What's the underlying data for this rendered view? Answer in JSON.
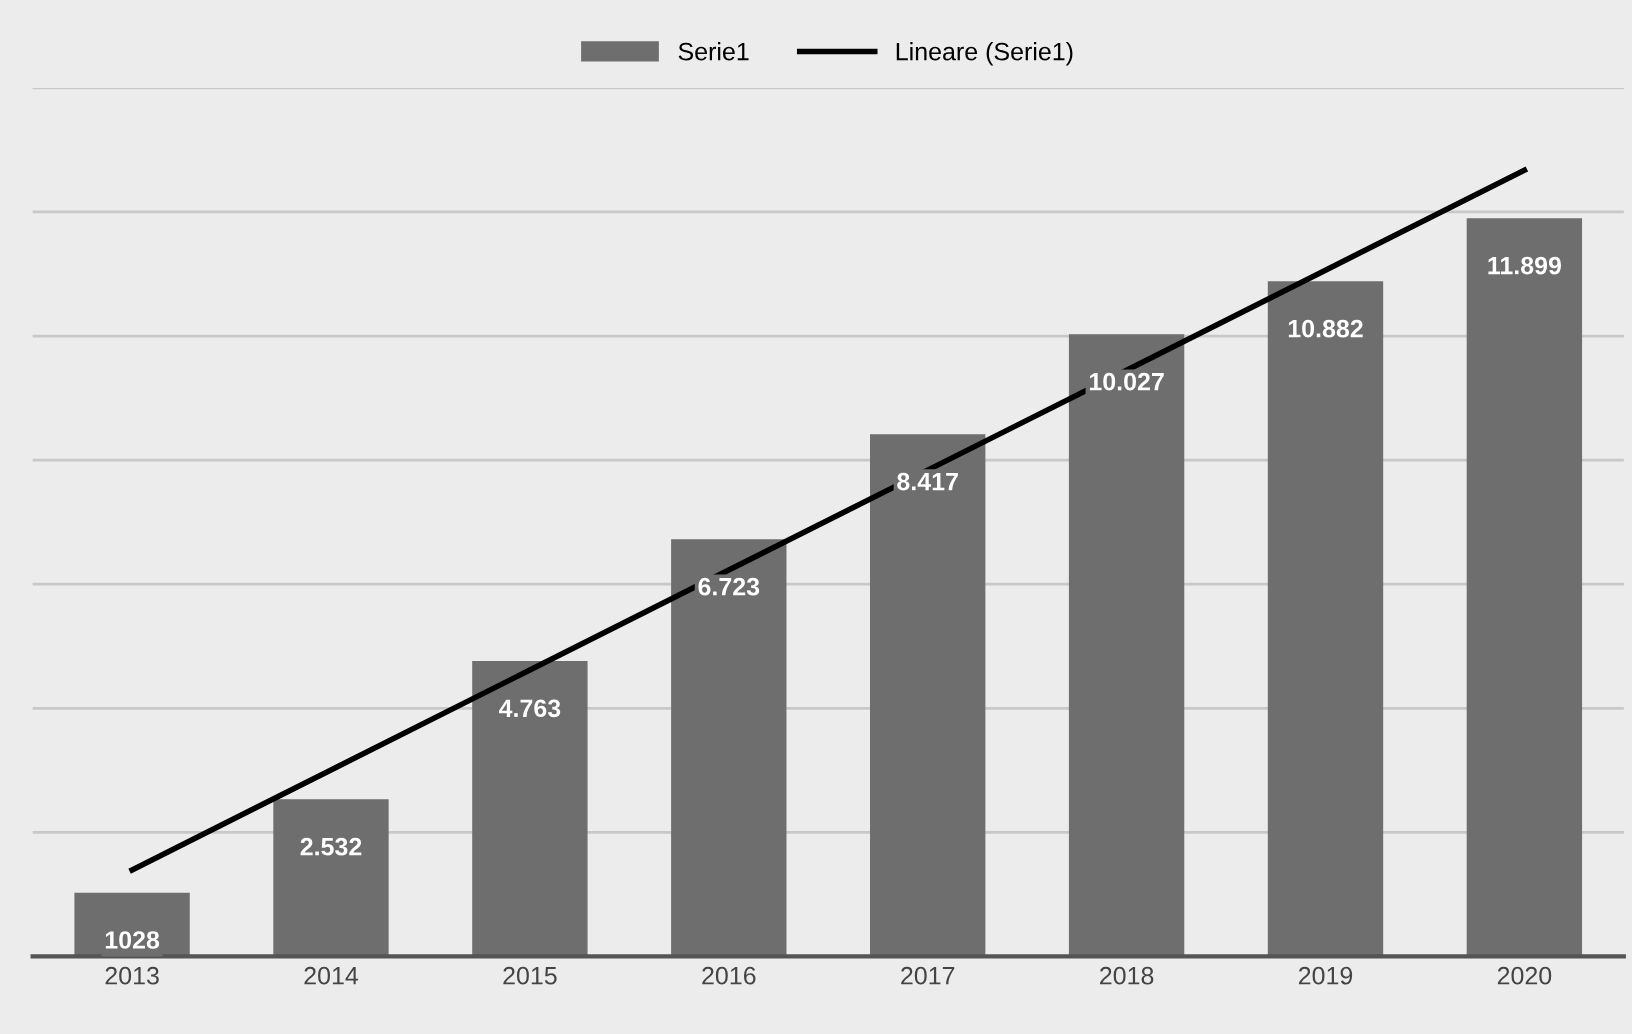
{
  "chart_data": {
    "type": "bar",
    "categories": [
      "2013",
      "2014",
      "2015",
      "2016",
      "2017",
      "2018",
      "2019",
      "2020"
    ],
    "series": [
      {
        "name": "Serie1",
        "color": "#6e6e6e",
        "values": [
          1028,
          2532,
          4763,
          6723,
          8417,
          10027,
          10882,
          11899
        ],
        "value_labels": [
          "1028",
          "2.532",
          "4.763",
          "6.723",
          "8.417",
          "10.027",
          "10.882",
          "11.899"
        ]
      },
      {
        "name": "Lineare (Serie1)",
        "type": "line",
        "color": "#000000",
        "values": [
          1395,
          3006,
          4617,
          6228,
          7839,
          9450,
          11062,
          12673
        ]
      }
    ],
    "ylim": [
      0,
      14000
    ],
    "yticks": [
      {
        "value": 0,
        "label": null
      },
      {
        "value": 2000,
        "label": null
      },
      {
        "value": 4000,
        "label": null
      },
      {
        "value": 6000,
        "label": null
      },
      {
        "value": 8000,
        "label": null
      },
      {
        "value": 10000,
        "label": null
      },
      {
        "value": 12000,
        "label": null
      },
      {
        "value": 14000,
        "label": null
      }
    ],
    "tick_labels": "x",
    "grid": "y",
    "legend": "top"
  }
}
